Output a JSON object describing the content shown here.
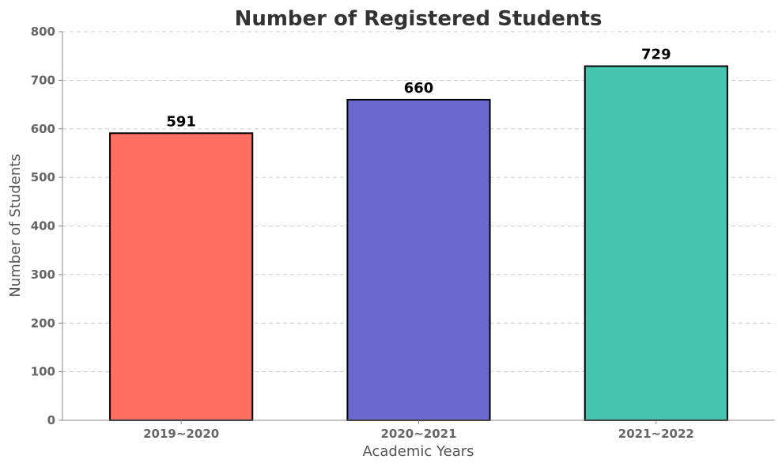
{
  "chart_data": {
    "type": "bar",
    "title": "Number of Registered Students",
    "xlabel": "Academic Years",
    "ylabel": "Number of Students",
    "categories": [
      "2019~2020",
      "2020~2021",
      "2021~2022"
    ],
    "values": [
      591,
      660,
      729
    ],
    "data_labels": [
      "591",
      "660",
      "729"
    ],
    "colors": [
      "#FF6F61",
      "#6B69CD",
      "#45C4B0"
    ],
    "ylim": [
      0,
      800
    ],
    "yticks": [
      0,
      100,
      200,
      300,
      400,
      500,
      600,
      700,
      800
    ],
    "ytick_labels": [
      "0",
      "100",
      "200",
      "300",
      "400",
      "500",
      "600",
      "700",
      "800"
    ],
    "grid": true,
    "grid_axis": "y",
    "legend": false
  }
}
